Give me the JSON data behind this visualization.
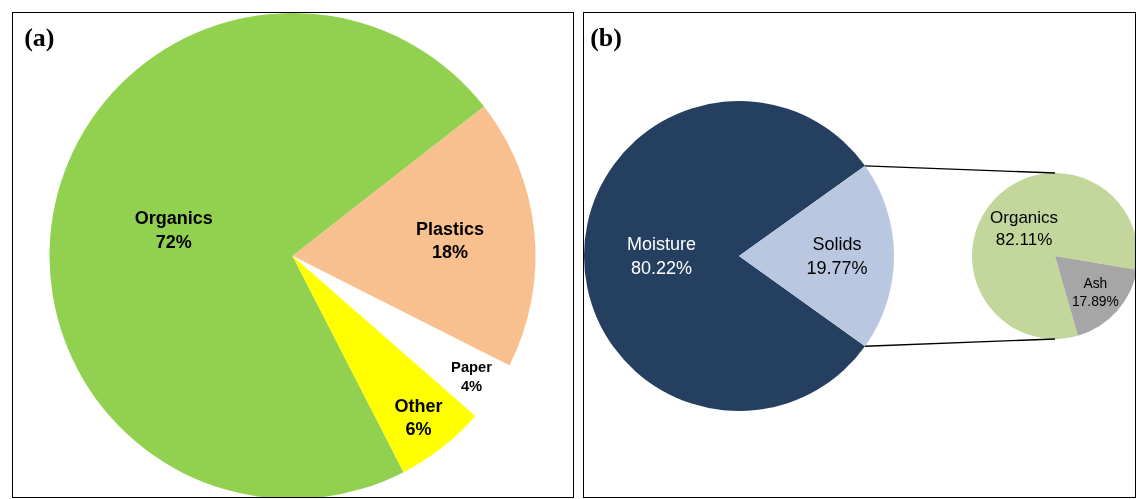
{
  "chart_data": [
    {
      "type": "pie",
      "title": "(a)",
      "categories": [
        "Organics",
        "Plastics",
        "Paper",
        "Other"
      ],
      "values": [
        72,
        18,
        4,
        6
      ],
      "colors": [
        "#92d050",
        "#f8c08f",
        "#ffffff",
        "#ffff00"
      ],
      "value_labels": [
        "72%",
        "18%",
        "4%",
        "6%"
      ],
      "legend": false
    },
    {
      "type": "pie",
      "title": "(b)",
      "categories": [
        "Moisture",
        "Solids"
      ],
      "values": [
        80.22,
        19.77
      ],
      "colors": [
        "#243f60",
        "#b9c7e0"
      ],
      "value_labels": [
        "80.22%",
        "19.77%"
      ],
      "legend": false
    },
    {
      "type": "pie",
      "categories": [
        "Organics",
        "Ash"
      ],
      "values": [
        82.11,
        17.89
      ],
      "colors": [
        "#c3d69b",
        "#a6a6a6"
      ],
      "value_labels": [
        "82.11%",
        "17.89%"
      ],
      "legend": false
    }
  ]
}
